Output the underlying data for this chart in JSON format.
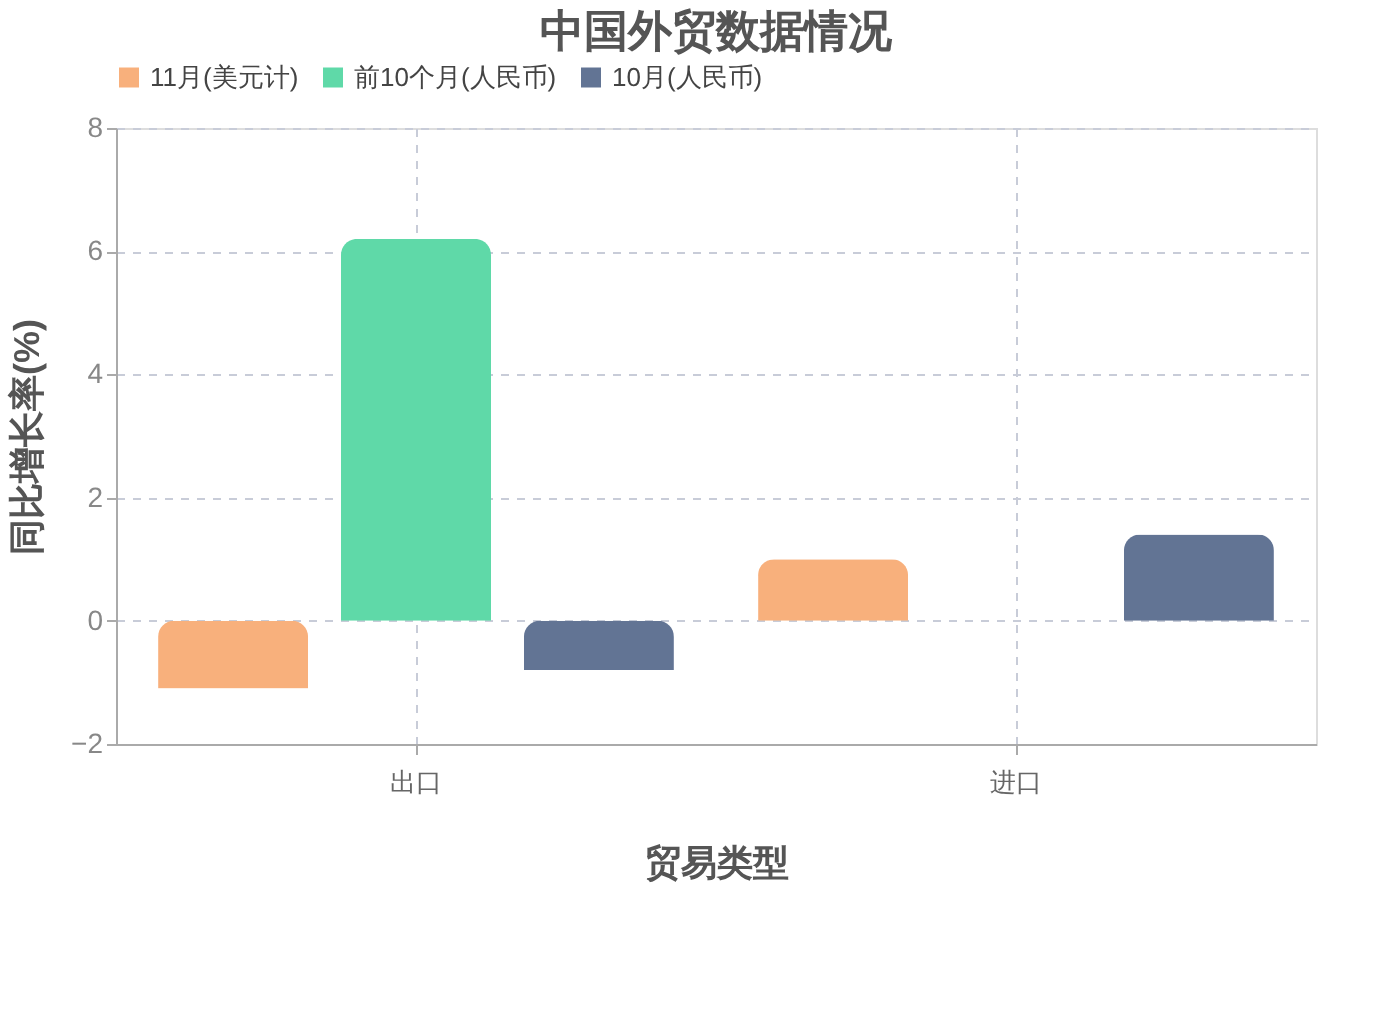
{
  "chart_data": {
    "type": "bar",
    "title": "中国外贸数据情况",
    "xlabel": "贸易类型",
    "ylabel": "同比增长率(%)",
    "categories": [
      "出口",
      "进口"
    ],
    "series": [
      {
        "name": "11月(美元计)",
        "color": "#f8b07c",
        "values": [
          -1.1,
          1.0
        ]
      },
      {
        "name": "前10个月(人民币)",
        "color": "#5fd9a8",
        "values": [
          6.2,
          null
        ]
      },
      {
        "name": "10月(人民币)",
        "color": "#627494",
        "values": [
          -0.8,
          1.4
        ]
      }
    ],
    "ylim": [
      -2,
      8
    ],
    "yticks": [
      -2,
      0,
      2,
      4,
      6,
      8
    ],
    "grid": true,
    "legend": "top"
  }
}
